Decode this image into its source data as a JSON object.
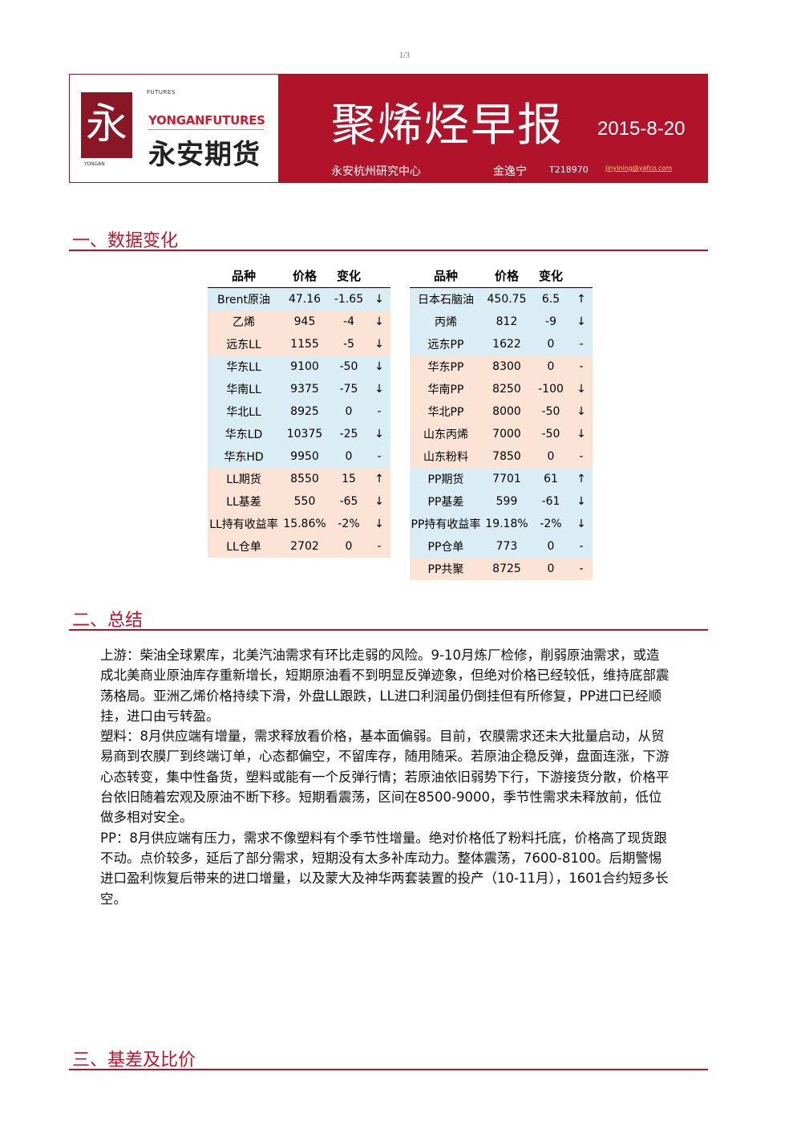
{
  "page_number": "1/3",
  "header": {
    "logo": {
      "futures_small": "FUTURES",
      "yongan_small": "YONGAN",
      "en_name": "YONGANFUTURES",
      "cn_name": "永安期货",
      "mark_glyph": "永"
    },
    "title": "聚烯烃早报",
    "date": "2015-8-20",
    "department": "永安杭州研究中心",
    "author": "金逸宁",
    "license": "T218970",
    "email": "jinyining@yafco.com"
  },
  "sections": {
    "data_change": "一、数据变化",
    "summary": "二、总结",
    "basis": "三、基差及比价"
  },
  "tables": {
    "headers": {
      "name": "品种",
      "price": "价格",
      "change": "变化"
    },
    "left": [
      {
        "name": "Brent原油",
        "price": "47.16",
        "change": "-1.65",
        "arrow": "↓",
        "color": "blue"
      },
      {
        "name": "乙烯",
        "price": "945",
        "change": "-4",
        "arrow": "↓",
        "color": "peach"
      },
      {
        "name": "远东LL",
        "price": "1155",
        "change": "-5",
        "arrow": "↓",
        "color": "peach"
      },
      {
        "name": "华东LL",
        "price": "9100",
        "change": "-50",
        "arrow": "↓",
        "color": "blue"
      },
      {
        "name": "华南LL",
        "price": "9375",
        "change": "-75",
        "arrow": "↓",
        "color": "blue"
      },
      {
        "name": "华北LL",
        "price": "8925",
        "change": "0",
        "arrow": "-",
        "color": "blue"
      },
      {
        "name": "华东LD",
        "price": "10375",
        "change": "-25",
        "arrow": "↓",
        "color": "blue"
      },
      {
        "name": "华东HD",
        "price": "9950",
        "change": "0",
        "arrow": "-",
        "color": "blue"
      },
      {
        "name": "LL期货",
        "price": "8550",
        "change": "15",
        "arrow": "↑",
        "color": "peach"
      },
      {
        "name": "LL基差",
        "price": "550",
        "change": "-65",
        "arrow": "↓",
        "color": "peach"
      },
      {
        "name": "LL持有收益率",
        "price": "15.86%",
        "change": "-2%",
        "arrow": "↓",
        "color": "peach"
      },
      {
        "name": "LL仓单",
        "price": "2702",
        "change": "0",
        "arrow": "-",
        "color": "peach"
      }
    ],
    "right": [
      {
        "name": "日本石脑油",
        "price": "450.75",
        "change": "6.5",
        "arrow": "↑",
        "color": "blue"
      },
      {
        "name": "丙烯",
        "price": "812",
        "change": "-9",
        "arrow": "↓",
        "color": "blue"
      },
      {
        "name": "远东PP",
        "price": "1622",
        "change": "0",
        "arrow": "-",
        "color": "blue"
      },
      {
        "name": "华东PP",
        "price": "8300",
        "change": "0",
        "arrow": "-",
        "color": "peach"
      },
      {
        "name": "华南PP",
        "price": "8250",
        "change": "-100",
        "arrow": "↓",
        "color": "peach"
      },
      {
        "name": "华北PP",
        "price": "8000",
        "change": "-50",
        "arrow": "↓",
        "color": "peach"
      },
      {
        "name": "山东丙烯",
        "price": "7000",
        "change": "-50",
        "arrow": "↓",
        "color": "peach"
      },
      {
        "name": "山东粉料",
        "price": "7850",
        "change": "0",
        "arrow": "-",
        "color": "peach"
      },
      {
        "name": "PP期货",
        "price": "7701",
        "change": "61",
        "arrow": "↑",
        "color": "blue"
      },
      {
        "name": "PP基差",
        "price": "599",
        "change": "-61",
        "arrow": "↓",
        "color": "blue"
      },
      {
        "name": "PP持有收益率",
        "price": "19.18%",
        "change": "-2%",
        "arrow": "↓",
        "color": "blue"
      },
      {
        "name": "PP仓单",
        "price": "773",
        "change": "0",
        "arrow": "-",
        "color": "blue"
      },
      {
        "name": "PP共聚",
        "price": "8725",
        "change": "0",
        "arrow": "-",
        "color": "peach"
      }
    ]
  },
  "summary": {
    "upstream": "上游：柴油全球累库，北美汽油需求有环比走弱的风险。9-10月炼厂检修，削弱原油需求，或造成北美商业原油库存重新增长，短期原油看不到明显反弹迹象，但绝对价格已经较低，维持底部震荡格局。亚洲乙烯价格持续下滑，外盘LL跟跌，LL进口利润虽仍倒挂但有所修复，PP进口已经顺挂，进口由亏转盈。",
    "plastic": "塑料：8月供应端有增量，需求释放看价格，基本面偏弱。目前，农膜需求还未大批量启动，从贸易商到农膜厂到终端订单，心态都偏空，不留库存，随用随采。若原油企稳反弹，盘面连涨，下游心态转变，集中性备货，塑料或能有一个反弹行情；若原油依旧弱势下行，下游接货分散，价格平台依旧随着宏观及原油不断下移。短期看震荡，区间在8500-9000，季节性需求未释放前，低位做多相对安全。",
    "pp": "PP：8月供应端有压力，需求不像塑料有个季节性增量。绝对价格低了粉料托底，价格高了现货跟不动。点价较多，延后了部分需求，短期没有太多补库动力。整体震荡，7600-8100。后期警惕进口盈利恢复后带来的进口增量，以及蒙大及神华两套装置的投产（10-11月），1601合约短多长空。"
  },
  "colors": {
    "brand_red": "#b1142a",
    "blue_row": "#daedf4",
    "peach_row": "#fbe4d5"
  }
}
